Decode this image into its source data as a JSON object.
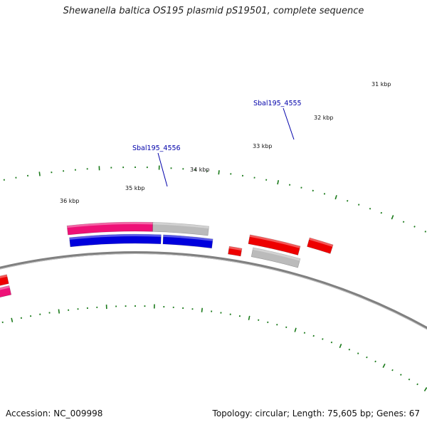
{
  "title": "Shewanella baltica OS195 plasmid pS19501, complete sequence",
  "footer": {
    "accession_label": "Accession:",
    "accession": "NC_009998",
    "topology_text": "Topology: circular; Length: 75,605 bp; Genes: 67"
  },
  "map": {
    "kbp_labels": [
      "31 kbp",
      "32 kbp",
      "33 kbp",
      "34 kbp",
      "35 kbp",
      "36 kbp"
    ],
    "gene_labels": [
      "Sbal195_4555",
      "Sbal195_4556"
    ],
    "colors": {
      "backbone": "#808080",
      "tick": "#1a7a1a",
      "red": "#ee0000",
      "pink": "#ee1177",
      "blue": "#0000dd",
      "gray": "#bbbbbb"
    }
  }
}
